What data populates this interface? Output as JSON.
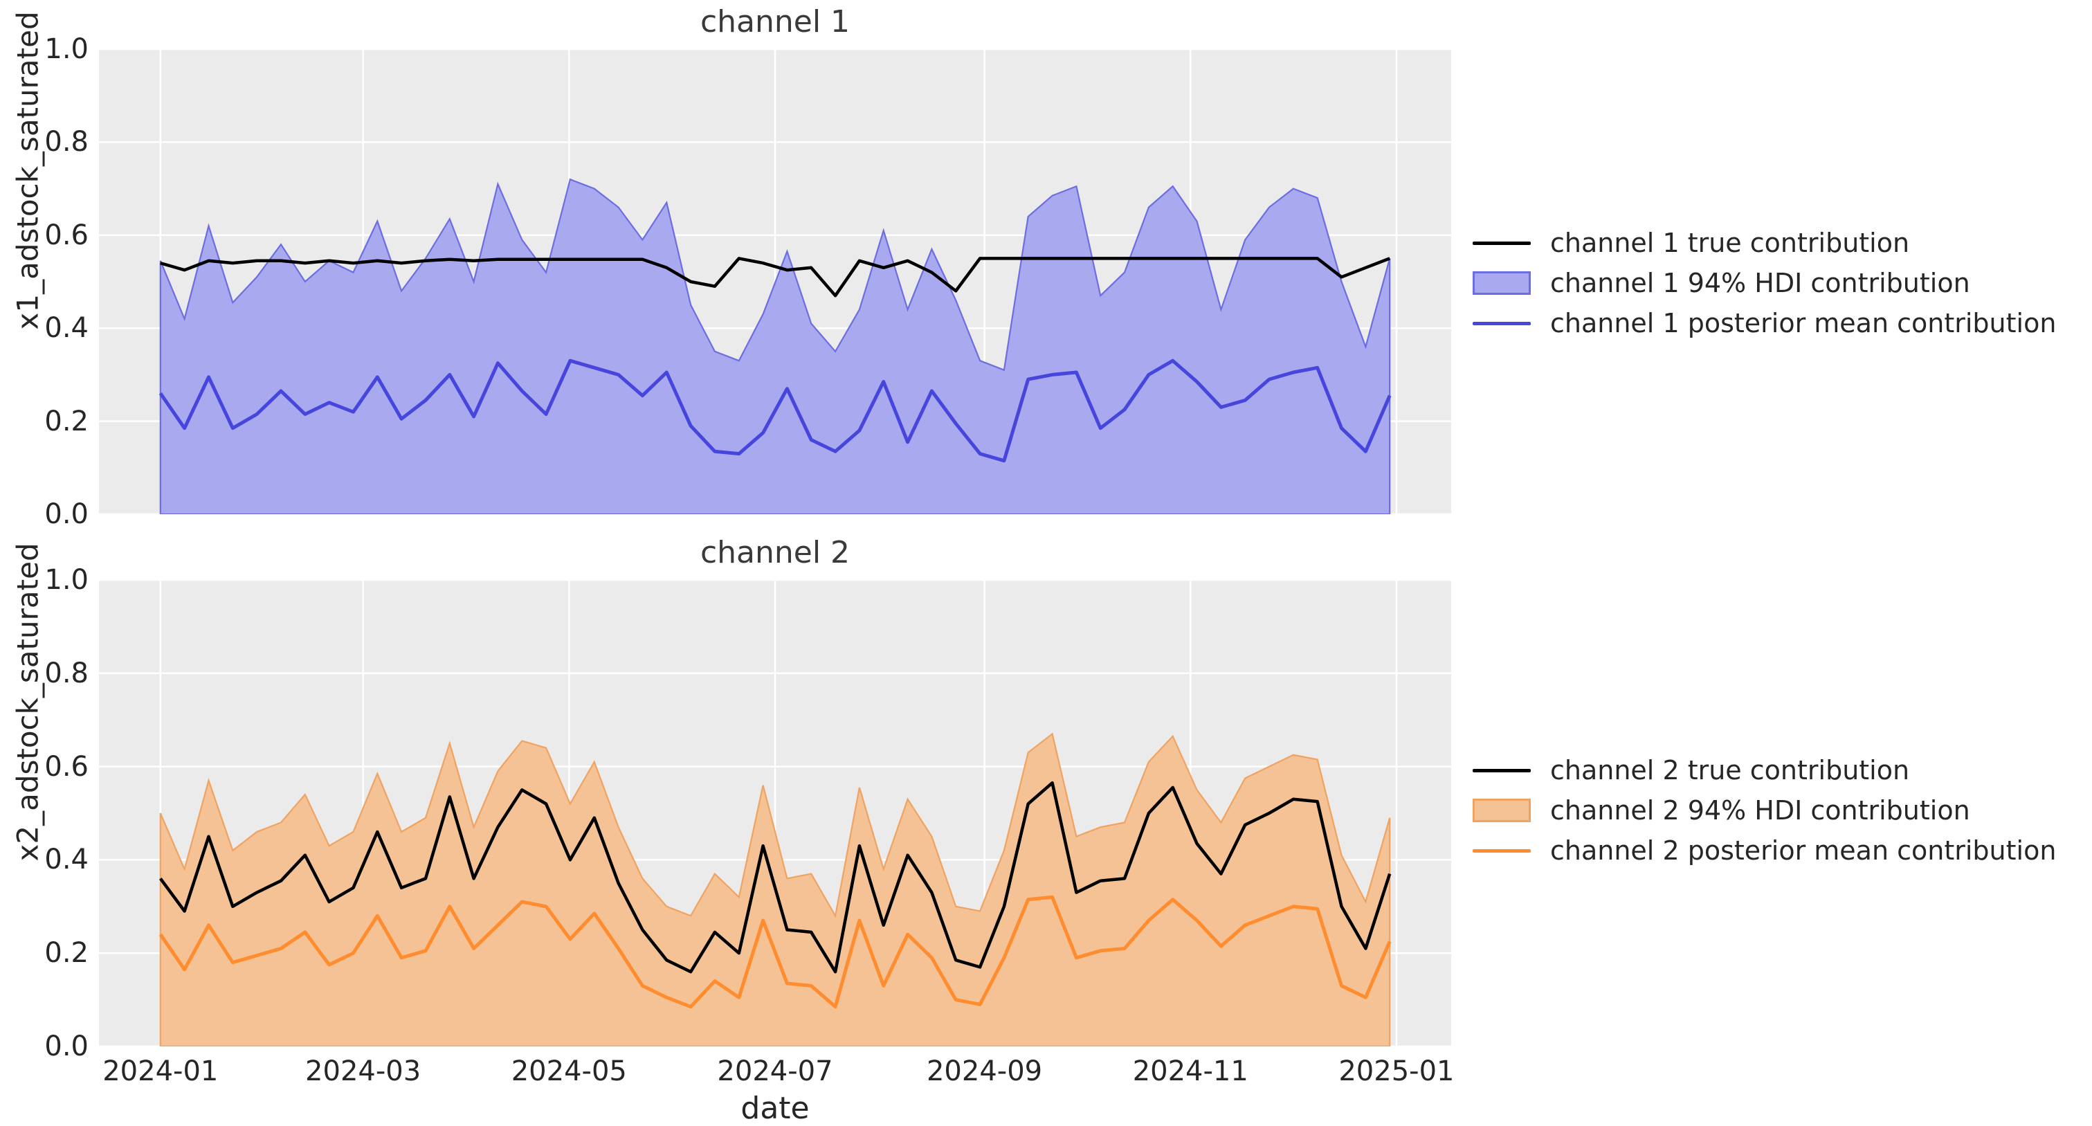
{
  "figure": {
    "bg": "#ffffff",
    "plot_bg": "#ebebeb",
    "grid_color": "#ffffff"
  },
  "xaxis": {
    "label": "date",
    "ticks": [
      "2024-01",
      "2024-03",
      "2024-05",
      "2024-07",
      "2024-09",
      "2024-11",
      "2025-01"
    ],
    "tick_days": [
      0,
      60,
      121,
      182,
      244,
      305,
      366
    ],
    "axis_day_min": -18.2,
    "axis_day_max": 382.2
  },
  "yaxis": {
    "ticks": [
      "0.0",
      "0.2",
      "0.4",
      "0.6",
      "0.8",
      "1.0"
    ],
    "lim": [
      0,
      1
    ]
  },
  "chart_data": [
    {
      "type": "line+area",
      "title": "channel 1",
      "ylabel": "x1_adstock_saturated",
      "xlabel": "date",
      "ylim": [
        0,
        1
      ],
      "grid": true,
      "legend_position": "right",
      "x_freq": "weekly",
      "x_start": "2024-01-01",
      "x_end": "2024-12-30",
      "colors": {
        "true_line": "#000000",
        "band_fill": "#a9a9f0",
        "band_edge": "#6d6de2",
        "mean_line": "#4646dd"
      },
      "legend": [
        {
          "label": "channel 1 true contribution",
          "marker": "line",
          "color": "#000000"
        },
        {
          "label": "channel 1 94% HDI contribution",
          "marker": "patch",
          "fill": "#a9a9f0",
          "edge": "#6d6de2"
        },
        {
          "label": "channel 1 posterior mean contribution",
          "marker": "line",
          "color": "#4646dd"
        }
      ],
      "series": [
        {
          "name": "channel 1 true contribution",
          "values": [
            0.54,
            0.525,
            0.545,
            0.54,
            0.545,
            0.545,
            0.54,
            0.545,
            0.54,
            0.545,
            0.54,
            0.545,
            0.548,
            0.545,
            0.548,
            0.548,
            0.548,
            0.548,
            0.548,
            0.548,
            0.548,
            0.53,
            0.5,
            0.49,
            0.55,
            0.54,
            0.525,
            0.53,
            0.47,
            0.545,
            0.53,
            0.545,
            0.52,
            0.48,
            0.55,
            0.55,
            0.55,
            0.55,
            0.55,
            0.55,
            0.55,
            0.55,
            0.55,
            0.55,
            0.55,
            0.55,
            0.55,
            0.55,
            0.55,
            0.51,
            0.53,
            0.55
          ]
        },
        {
          "name": "channel 1 94% HDI upper",
          "values": [
            0.545,
            0.42,
            0.62,
            0.455,
            0.51,
            0.58,
            0.5,
            0.545,
            0.52,
            0.63,
            0.48,
            0.55,
            0.635,
            0.5,
            0.71,
            0.59,
            0.52,
            0.72,
            0.7,
            0.66,
            0.59,
            0.67,
            0.45,
            0.35,
            0.33,
            0.43,
            0.565,
            0.41,
            0.35,
            0.44,
            0.61,
            0.44,
            0.57,
            0.46,
            0.33,
            0.31,
            0.64,
            0.685,
            0.705,
            0.47,
            0.52,
            0.66,
            0.705,
            0.63,
            0.44,
            0.59,
            0.66,
            0.7,
            0.68,
            0.5,
            0.36,
            0.55
          ]
        },
        {
          "name": "channel 1 94% HDI lower",
          "values": [
            0,
            0,
            0,
            0,
            0,
            0,
            0,
            0,
            0,
            0,
            0,
            0,
            0,
            0,
            0,
            0,
            0,
            0,
            0,
            0,
            0,
            0,
            0,
            0,
            0,
            0,
            0,
            0,
            0,
            0,
            0,
            0,
            0,
            0,
            0,
            0,
            0,
            0,
            0,
            0,
            0,
            0,
            0,
            0,
            0,
            0,
            0,
            0,
            0,
            0,
            0,
            0
          ]
        },
        {
          "name": "channel 1 posterior mean contribution",
          "values": [
            0.26,
            0.185,
            0.295,
            0.185,
            0.215,
            0.265,
            0.215,
            0.24,
            0.22,
            0.295,
            0.205,
            0.245,
            0.3,
            0.21,
            0.325,
            0.265,
            0.215,
            0.33,
            0.315,
            0.3,
            0.255,
            0.305,
            0.19,
            0.135,
            0.13,
            0.175,
            0.27,
            0.16,
            0.135,
            0.18,
            0.285,
            0.155,
            0.265,
            0.195,
            0.13,
            0.115,
            0.29,
            0.3,
            0.305,
            0.185,
            0.225,
            0.3,
            0.33,
            0.285,
            0.23,
            0.245,
            0.29,
            0.305,
            0.315,
            0.185,
            0.135,
            0.255
          ]
        }
      ]
    },
    {
      "type": "line+area",
      "title": "channel 2",
      "ylabel": "x2_adstock_saturated",
      "xlabel": "date",
      "ylim": [
        0,
        1
      ],
      "grid": true,
      "legend_position": "right",
      "x_freq": "weekly",
      "x_start": "2024-01-01",
      "x_end": "2024-12-30",
      "colors": {
        "true_line": "#000000",
        "band_fill": "#f5c296",
        "band_edge": "#f0a360",
        "mean_line": "#ff8c2e"
      },
      "legend": [
        {
          "label": "channel 2 true contribution",
          "marker": "line",
          "color": "#000000"
        },
        {
          "label": "channel 2 94% HDI contribution",
          "marker": "patch",
          "fill": "#f5c296",
          "edge": "#f0a360"
        },
        {
          "label": "channel 2 posterior mean contribution",
          "marker": "line",
          "color": "#ff8c2e"
        }
      ],
      "series": [
        {
          "name": "channel 2 true contribution",
          "values": [
            0.36,
            0.29,
            0.45,
            0.3,
            0.33,
            0.355,
            0.41,
            0.31,
            0.34,
            0.46,
            0.34,
            0.36,
            0.535,
            0.36,
            0.47,
            0.55,
            0.52,
            0.4,
            0.49,
            0.35,
            0.25,
            0.185,
            0.16,
            0.245,
            0.2,
            0.43,
            0.25,
            0.245,
            0.16,
            0.43,
            0.26,
            0.41,
            0.33,
            0.185,
            0.17,
            0.3,
            0.52,
            0.565,
            0.33,
            0.355,
            0.36,
            0.5,
            0.555,
            0.435,
            0.37,
            0.475,
            0.5,
            0.53,
            0.525,
            0.3,
            0.21,
            0.37
          ]
        },
        {
          "name": "channel 2 94% HDI upper",
          "values": [
            0.5,
            0.38,
            0.57,
            0.42,
            0.46,
            0.48,
            0.54,
            0.43,
            0.46,
            0.585,
            0.46,
            0.49,
            0.65,
            0.47,
            0.59,
            0.655,
            0.64,
            0.52,
            0.61,
            0.47,
            0.36,
            0.3,
            0.28,
            0.37,
            0.32,
            0.56,
            0.36,
            0.37,
            0.28,
            0.555,
            0.38,
            0.53,
            0.45,
            0.3,
            0.29,
            0.42,
            0.63,
            0.67,
            0.45,
            0.47,
            0.48,
            0.61,
            0.665,
            0.55,
            0.48,
            0.575,
            0.6,
            0.625,
            0.615,
            0.41,
            0.31,
            0.49
          ]
        },
        {
          "name": "channel 2 94% HDI lower",
          "values": [
            0,
            0,
            0,
            0,
            0,
            0,
            0,
            0,
            0,
            0,
            0,
            0,
            0,
            0,
            0,
            0,
            0,
            0,
            0,
            0,
            0,
            0,
            0,
            0,
            0,
            0,
            0,
            0,
            0,
            0,
            0,
            0,
            0,
            0,
            0,
            0,
            0,
            0,
            0,
            0,
            0,
            0,
            0,
            0,
            0,
            0,
            0,
            0,
            0,
            0,
            0,
            0
          ]
        },
        {
          "name": "channel 2 posterior mean contribution",
          "values": [
            0.24,
            0.165,
            0.26,
            0.18,
            0.195,
            0.21,
            0.245,
            0.175,
            0.2,
            0.28,
            0.19,
            0.205,
            0.3,
            0.21,
            0.26,
            0.31,
            0.3,
            0.23,
            0.285,
            0.21,
            0.13,
            0.105,
            0.085,
            0.14,
            0.105,
            0.27,
            0.135,
            0.13,
            0.085,
            0.27,
            0.13,
            0.24,
            0.19,
            0.1,
            0.09,
            0.19,
            0.315,
            0.32,
            0.19,
            0.205,
            0.21,
            0.27,
            0.315,
            0.27,
            0.215,
            0.26,
            0.28,
            0.3,
            0.295,
            0.13,
            0.105,
            0.225
          ]
        }
      ]
    }
  ]
}
